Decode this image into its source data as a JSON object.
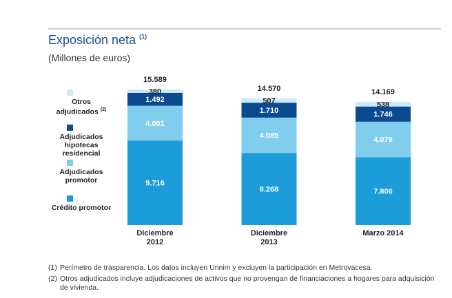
{
  "chart_data": {
    "type": "stacked_bar",
    "title": "Exposición neta",
    "title_note": "(1)",
    "subtitle": "(Millones de euros)",
    "categories": [
      "Diciembre 2012",
      "Diciembre 2013",
      "Marzo 2014"
    ],
    "series": [
      {
        "name": "Crédito promotor",
        "color": "#1c9cd8",
        "label_color": "#ffffff",
        "values": [
          9716,
          8268,
          7806
        ],
        "value_labels": [
          "9.716",
          "8.268",
          "7.806"
        ]
      },
      {
        "name": "Adjudicados promotor",
        "color": "#80cdee",
        "label_color": "#ffffff",
        "values": [
          4001,
          4085,
          4079
        ],
        "value_labels": [
          "4.001",
          "4.085",
          "4.079"
        ]
      },
      {
        "name": "Adjudicados hipotecas residencial",
        "color": "#0b4a8e",
        "label_color": "#ffffff",
        "values": [
          1492,
          1710,
          1746
        ],
        "value_labels": [
          "1.492",
          "1.710",
          "1.746"
        ]
      },
      {
        "name": "Otros adjudicados",
        "name_note": "(2)",
        "color": "#cbe9f6",
        "label_color": "#222222",
        "values": [
          380,
          507,
          538
        ],
        "value_labels": [
          "380",
          "507",
          "538"
        ]
      }
    ],
    "totals": {
      "values": [
        15589,
        14570,
        14169
      ],
      "value_labels": [
        "15.589",
        "14.570",
        "14.169"
      ]
    },
    "footnotes": [
      {
        "marker": "(1)",
        "text": "Perímetro de trasparencia. Los datos incluyen Unnim y excluyen la participación en Metrovacesa."
      },
      {
        "marker": "(2)",
        "text": "Otros adjudicados incluye adjudicaciones de activos que no provengan de financiaciones a hogares para adquisición de vivienda."
      }
    ]
  }
}
